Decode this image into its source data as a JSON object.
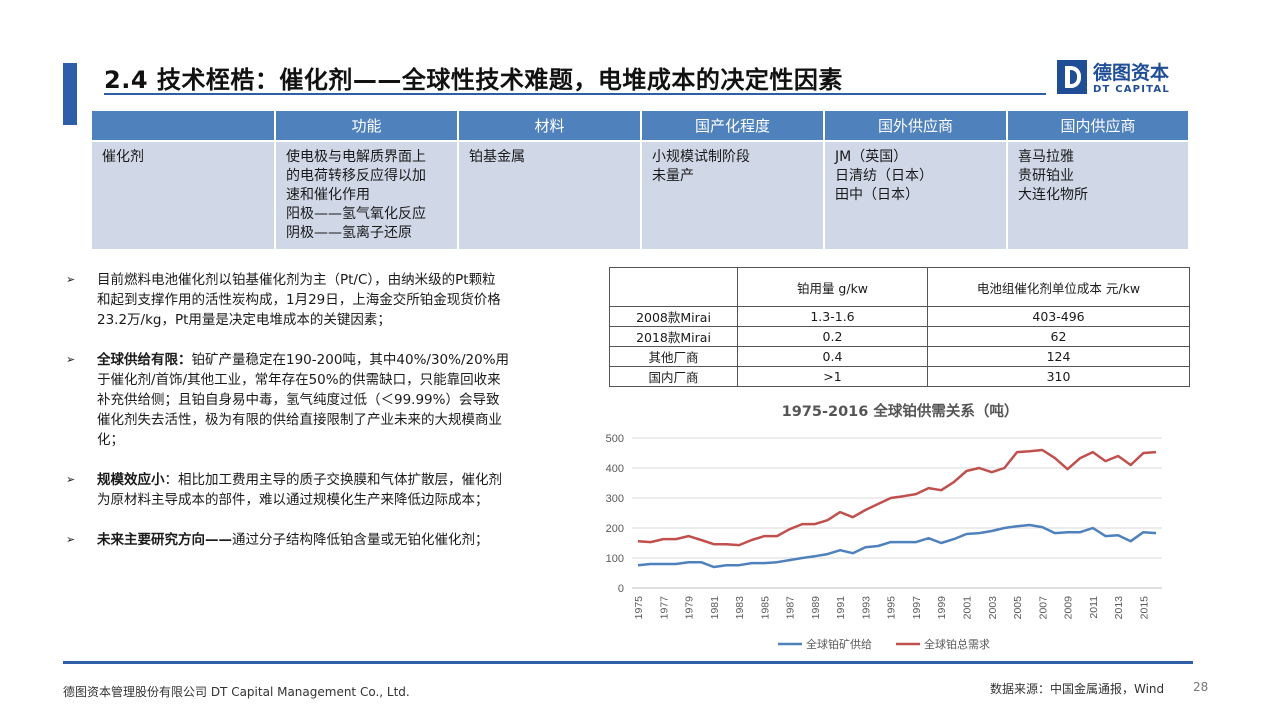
{
  "slide": {
    "title": "2.4 技术桎梏：催化剂——全球性技术难题，电堆成本的决定性因素",
    "logo_cn": "德图资本",
    "logo_en": "DT CAPITAL"
  },
  "top_table": {
    "headers": [
      "",
      "功能",
      "材料",
      "国产化程度",
      "国外供应商",
      "国内供应商"
    ],
    "row": {
      "name": "催化剂",
      "function_lines": [
        "使电极与电解质界面上",
        "的电荷转移反应得以加",
        "速和催化作用",
        "阳极——氢气氧化反应",
        "阴极——氢离子还原"
      ],
      "material": "铂基金属",
      "localization_lines": [
        "小规模试制阶段",
        "未量产"
      ],
      "foreign_lines": [
        "JM（英国）",
        "日清纺（日本）",
        "田中（日本）"
      ],
      "domestic_lines": [
        "喜马拉雅",
        "贵研铂业",
        "大连化物所"
      ]
    }
  },
  "bullets": [
    {
      "bold": "",
      "lines": [
        "目前燃料电池催化剂以铂基催化剂为主（Pt/C），由纳米级的Pt颗粒",
        "和起到支撑作用的活性炭构成，1月29日，上海金交所铂金现货价格",
        "23.2万/kg，Pt用量是决定电堆成本的关键因素；"
      ]
    },
    {
      "bold": "全球供给有限：",
      "lines": [
        "铂矿产量稳定在190-200吨，其中40%/30%/20%用",
        "于催化剂/首饰/其他工业，常年存在50%的供需缺口，只能靠回收来",
        "补充供给侧；且铂自身易中毒，氢气纯度过低（＜99.99%）会导致",
        "催化剂失去活性，极为有限的供给直接限制了产业未来的大规模商业",
        "化；"
      ]
    },
    {
      "bold": "规模效应小",
      "lines": [
        "：相比加工费用主导的质子交换膜和气体扩散层，催化剂",
        "为原材料主导成本的部件，难以通过规模化生产来降低边际成本；"
      ]
    },
    {
      "bold": "未来主要研究方向——",
      "lines": [
        "通过分子结构降低铂含量或无铂化催化剂；"
      ]
    }
  ],
  "cost_table": {
    "headers": [
      "",
      "铂用量 g/kw",
      "电池组催化剂单位成本 元/kw"
    ],
    "rows": [
      [
        "2008款Mirai",
        "1.3-1.6",
        "403-496"
      ],
      [
        "2018款Mirai",
        "0.2",
        "62"
      ],
      [
        "其他厂商",
        "0.4",
        "124"
      ],
      [
        "国内厂商",
        ">1",
        "310"
      ]
    ]
  },
  "chart_data": {
    "type": "line",
    "title": "1975-2016 全球铂供需关系（吨）",
    "x": [
      1975,
      1976,
      1977,
      1978,
      1979,
      1980,
      1981,
      1982,
      1983,
      1984,
      1985,
      1986,
      1987,
      1988,
      1989,
      1990,
      1991,
      1992,
      1993,
      1994,
      1995,
      1996,
      1997,
      1998,
      1999,
      2000,
      2001,
      2002,
      2003,
      2004,
      2005,
      2006,
      2007,
      2008,
      2009,
      2010,
      2011,
      2012,
      2013,
      2014,
      2015,
      2016
    ],
    "x_tick_labels": [
      "1975",
      "1977",
      "1979",
      "1981",
      "1983",
      "1985",
      "1987",
      "1989",
      "1991",
      "1993",
      "1995",
      "1997",
      "1999",
      "2001",
      "2003",
      "2005",
      "2007",
      "2009",
      "2011",
      "2013",
      "2015"
    ],
    "ylim": [
      0,
      500
    ],
    "y_ticks": [
      "0",
      "100",
      "200",
      "300",
      "400",
      "500"
    ],
    "grid": true,
    "legend_placement": "bottom",
    "series": [
      {
        "name": "全球铂矿供给",
        "color": "#4f81bd",
        "values": [
          76,
          80,
          80,
          80,
          86,
          86,
          70,
          76,
          76,
          83,
          83,
          86,
          93,
          100,
          106,
          113,
          126,
          116,
          136,
          140,
          153,
          153,
          153,
          166,
          150,
          163,
          180,
          183,
          190,
          200,
          206,
          210,
          203,
          183,
          186,
          186,
          200,
          173,
          176,
          156,
          186,
          183
        ]
      },
      {
        "name": "全球铂总需求",
        "color": "#c0504d",
        "values": [
          156,
          153,
          163,
          163,
          173,
          160,
          146,
          146,
          143,
          160,
          173,
          173,
          196,
          213,
          213,
          226,
          253,
          236,
          260,
          280,
          300,
          306,
          313,
          333,
          326,
          353,
          390,
          400,
          386,
          400,
          453,
          456,
          460,
          433,
          396,
          433,
          453,
          423,
          440,
          410,
          450,
          453
        ]
      }
    ]
  },
  "footer": {
    "company": "德图资本管理股份有限公司  DT Capital  Management  Co., Ltd.",
    "source": "数据来源：中国金属通报，Wind",
    "page": "28"
  }
}
